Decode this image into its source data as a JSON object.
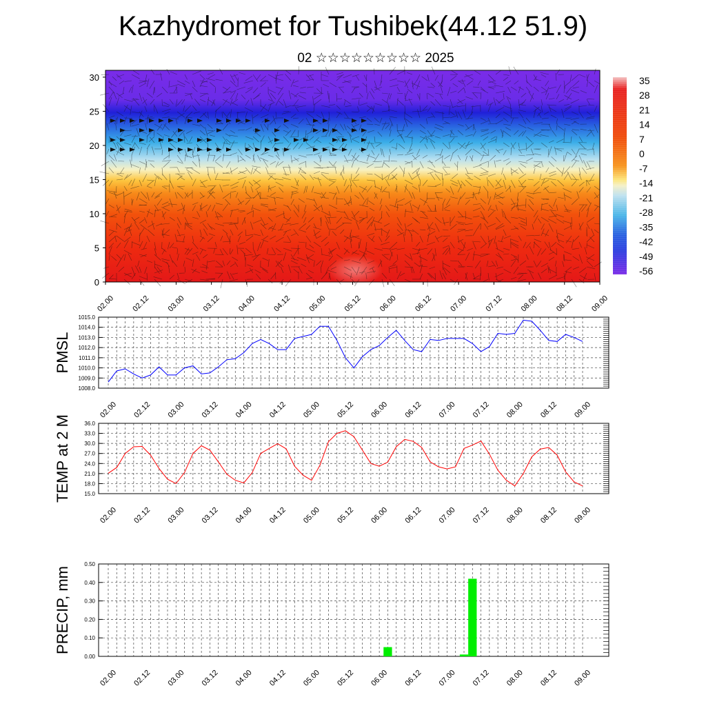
{
  "title": "Kazhydromet for Tushibek(44.12 51.9)",
  "subtitle": "02 ☆☆☆☆☆☆☆☆☆ 2025",
  "chart_data": [
    {
      "type": "heatmap",
      "name": "cross-section",
      "x_ticks": [
        "02.00",
        "02.12",
        "03.00",
        "03.12",
        "04.00",
        "04.12",
        "05.00",
        "05.12",
        "06.00",
        "06.12",
        "07.00",
        "07.12",
        "08.00",
        "08.12",
        "09.00"
      ],
      "y_ticks": [
        "0",
        "5",
        "10",
        "15",
        "20",
        "25",
        "30"
      ],
      "ylim": [
        0,
        31
      ],
      "colorbar_labels": [
        "35",
        "28",
        "21",
        "14",
        "7",
        "0",
        "-7",
        "-14",
        "-21",
        "-28",
        "-35",
        "-42",
        "-49",
        "-56"
      ],
      "colorbar_colors": [
        "#f0b3b3",
        "#e82020",
        "#e82020",
        "#f04a0a",
        "#f26b12",
        "#f7941d",
        "#fbb635",
        "#fde57a",
        "#f4f0c8",
        "#bfe1ef",
        "#4ab6e8",
        "#2890e0",
        "#2d3fe0",
        "#7a2ce8"
      ],
      "temperature_profile": [
        {
          "level": 0,
          "value": 25
        },
        {
          "level": 5,
          "value": 22
        },
        {
          "level": 10,
          "value": 10
        },
        {
          "level": 13,
          "value": 2
        },
        {
          "level": 15,
          "value": -7
        },
        {
          "level": 17,
          "value": -20
        },
        {
          "level": 20,
          "value": -32
        },
        {
          "level": 23,
          "value": -45
        },
        {
          "level": 25,
          "value": -56
        },
        {
          "level": 27,
          "value": -58
        },
        {
          "level": 31,
          "value": -60
        }
      ],
      "wind_barbs": true
    },
    {
      "type": "line",
      "name": "pmsl",
      "ylabel": "PMSL",
      "ylim": [
        1008.0,
        1015.0
      ],
      "y_ticks": [
        "1008.0",
        "1009.0",
        "1010.0",
        "1011.0",
        "1012.0",
        "1013.0",
        "1014.0",
        "1015.0"
      ],
      "x_ticks": [
        "02.00",
        "02.12",
        "03.00",
        "03.12",
        "04.00",
        "04.12",
        "05.00",
        "05.12",
        "06.00",
        "06.12",
        "07.00",
        "07.12",
        "08.00",
        "08.12",
        "09.00"
      ],
      "color": "#0000ff",
      "series": [
        {
          "values": [
            1008.6,
            1009.7,
            1009.9,
            1009.4,
            1009.0,
            1009.3,
            1010.1,
            1009.3,
            1009.3,
            1010.0,
            1010.2,
            1009.4,
            1009.5,
            1010.1,
            1010.8,
            1010.9,
            1011.5,
            1012.4,
            1012.8,
            1012.4,
            1011.8,
            1011.8,
            1012.9,
            1013.1,
            1013.3,
            1014.1,
            1014.1,
            1012.7,
            1011.0,
            1010.0,
            1011.1,
            1011.8,
            1012.2,
            1013.0,
            1013.7,
            1012.7,
            1011.8,
            1011.6,
            1012.8,
            1012.7,
            1012.9,
            1012.9,
            1012.9,
            1012.4,
            1011.6,
            1012.1,
            1013.4,
            1013.3,
            1013.4,
            1014.7,
            1014.6,
            1013.7,
            1012.7,
            1012.6,
            1013.3,
            1013.0,
            1012.6
          ]
        }
      ]
    },
    {
      "type": "line",
      "name": "temp2m",
      "ylabel": "TEMP at 2 M",
      "ylim": [
        15.0,
        36.0
      ],
      "y_ticks": [
        "15.0",
        "18.0",
        "21.0",
        "24.0",
        "27.0",
        "30.0",
        "33.0",
        "36.0"
      ],
      "x_ticks": [
        "02.00",
        "02.12",
        "03.00",
        "03.12",
        "04.00",
        "04.12",
        "05.00",
        "05.12",
        "06.00",
        "06.12",
        "07.00",
        "07.12",
        "08.00",
        "08.12",
        "09.00"
      ],
      "color": "#ff0000",
      "series": [
        {
          "values": [
            21.1,
            22.8,
            27.0,
            29.0,
            29.1,
            26.5,
            22.5,
            19.3,
            18.0,
            21.3,
            27.0,
            29.3,
            28.0,
            24.5,
            20.8,
            19.0,
            18.2,
            21.3,
            27.0,
            28.5,
            29.9,
            28.4,
            23.2,
            20.5,
            19.0,
            23.5,
            30.5,
            33.0,
            33.8,
            32.0,
            28.0,
            24.0,
            23.2,
            24.4,
            29.0,
            31.2,
            30.6,
            28.8,
            24.5,
            23.0,
            22.4,
            23.0,
            28.5,
            29.5,
            30.7,
            26.8,
            22.0,
            19.0,
            17.3,
            21.0,
            26.0,
            28.3,
            28.8,
            26.5,
            21.5,
            18.5,
            17.3
          ]
        }
      ]
    },
    {
      "type": "bar",
      "name": "precip",
      "ylabel": "PRECIP, mm",
      "ylim": [
        0.0,
        0.5
      ],
      "y_ticks": [
        "0.00",
        "0.10",
        "0.20",
        "0.30",
        "0.40",
        "0.50"
      ],
      "x_ticks": [
        "02.00",
        "02.12",
        "03.00",
        "03.12",
        "04.00",
        "04.12",
        "05.00",
        "05.12",
        "06.00",
        "06.12",
        "07.00",
        "07.12",
        "08.00",
        "08.12",
        "09.00"
      ],
      "color": "#00ee00",
      "series": [
        {
          "values": [
            0,
            0,
            0,
            0,
            0,
            0,
            0,
            0,
            0,
            0,
            0,
            0,
            0,
            0,
            0,
            0,
            0,
            0,
            0,
            0,
            0,
            0,
            0,
            0,
            0,
            0,
            0,
            0,
            0,
            0,
            0,
            0,
            0,
            0.05,
            0,
            0,
            0,
            0,
            0,
            0,
            0,
            0,
            0.01,
            0.42,
            0,
            0,
            0,
            0,
            0,
            0,
            0,
            0,
            0,
            0,
            0,
            0
          ]
        }
      ]
    }
  ]
}
